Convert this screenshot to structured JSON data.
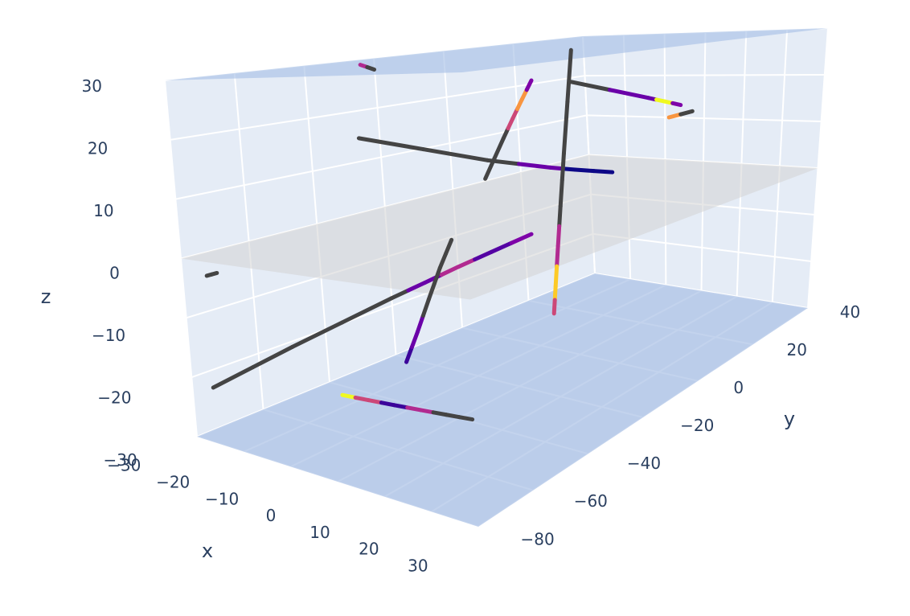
{
  "chart_data": {
    "type": "scatter3d",
    "xlabel": "x",
    "ylabel": "y",
    "zlabel": "z",
    "xlim": [
      -30,
      30
    ],
    "ylim": [
      -80,
      40
    ],
    "zlim": [
      -30,
      30
    ],
    "xticks": [
      {
        "value": -30,
        "label": "−30"
      },
      {
        "value": -20,
        "label": "−20"
      },
      {
        "value": -10,
        "label": "−10"
      },
      0,
      10,
      20,
      30
    ],
    "yticks": [
      {
        "value": -80,
        "label": "−80"
      },
      {
        "value": -60,
        "label": "−60"
      },
      {
        "value": -40,
        "label": "−40"
      },
      {
        "value": -20,
        "label": "−20"
      },
      0,
      20,
      40
    ],
    "zticks": [
      {
        "value": -30,
        "label": "−30"
      },
      {
        "value": -20,
        "label": "−20"
      },
      {
        "value": -10,
        "label": "−10"
      },
      0,
      10,
      20,
      30
    ],
    "grid": true,
    "planes": [
      {
        "z": -30,
        "color": "#a9c1e6",
        "opacity": 0.7
      },
      {
        "z": 0,
        "color": "#d4d4d4",
        "opacity": 0.55
      },
      {
        "z": 30,
        "color": "#a9c1e6",
        "opacity": 0.65
      }
    ],
    "series": [
      {
        "x": [
          -30,
          -30,
          -30,
          -30,
          -30,
          -30,
          -30
        ],
        "y": [
          -74,
          -50,
          -20,
          -10,
          0,
          10,
          22
        ],
        "z": [
          -23,
          -21,
          -18.5,
          -17.7,
          -16.8,
          -16,
          -15
        ],
        "colors": [
          "#444444",
          "#444444",
          "#444444",
          "#6a00a8",
          "#b12a90",
          "#5402a3",
          "#7e03a8"
        ]
      },
      {
        "x": [
          0,
          0,
          0,
          0,
          0
        ],
        "y": [
          -56,
          -52,
          -48,
          -44,
          -40
        ],
        "z": [
          -17,
          -13,
          -8.5,
          -4,
          0
        ],
        "colors": [
          "#3b049a",
          "#6a00a8",
          "#444444",
          "#444444",
          "#444444"
        ]
      },
      {
        "x": [
          -24,
          -18,
          -12,
          -6,
          0,
          6
        ],
        "y": [
          -44,
          -44,
          -44,
          -44,
          -44,
          -44
        ],
        "z": [
          -30,
          -29.6,
          -29.2,
          -28.8,
          -28.4,
          -28
        ],
        "colors": [
          "#f0f921",
          "#cc4778",
          "#3b049a",
          "#b12a90",
          "#444444",
          "#444444"
        ]
      },
      {
        "x": [
          -30,
          -27,
          -25.5,
          -24.9,
          -24
        ],
        "y": [
          -26,
          7,
          23.5,
          30.1,
          40
        ],
        "z": [
          14.6,
          5.3,
          0.65,
          -1.2,
          -4
        ],
        "colors": [
          "#444444",
          "#444444",
          "#6a00a8",
          "#0d0887",
          "#0d0887"
        ]
      },
      {
        "x": [
          -18,
          -18,
          -18,
          -18,
          -18,
          -18
        ],
        "y": [
          22,
          18.8,
          17.2,
          16,
          14.8,
          14
        ],
        "z": [
          28,
          5.2,
          -6.2,
          -14.75,
          -23.3,
          -29
        ],
        "colors": [
          "#444444",
          "#444444",
          "#444444",
          "#b12a90",
          "#fdca26",
          "#cc4778"
        ]
      },
      {
        "x": [
          -18,
          -18,
          -18,
          -18,
          -18
        ],
        "y": [
          -5,
          1,
          4,
          7,
          10
        ],
        "z": [
          4,
          11.4,
          15.1,
          18.8,
          22.5
        ],
        "colors": [
          "#444444",
          "#444444",
          "#cc4778",
          "#f89540",
          "#7e03a8"
        ]
      },
      {
        "x": [
          -30,
          -13.2,
          -9.6,
          -6
        ],
        "y": [
          36,
          38.8,
          39.4,
          40
        ],
        "z": [
          19,
          14.8,
          13.9,
          13
        ],
        "colors": [
          "#444444",
          "#6a00a8",
          "#f0f921",
          "#7e03a8"
        ]
      },
      {
        "x": [
          -9,
          -3
        ],
        "y": [
          40,
          40
        ],
        "z": [
          10,
          11.6
        ],
        "colors": [
          "#f89540",
          "#444444"
        ]
      },
      {
        "x": [
          -30,
          -30
        ],
        "y": [
          -73,
          -70
        ],
        "z": [
          -4,
          -4
        ],
        "colors": [
          "#444444",
          "#444444"
        ]
      },
      {
        "x": [
          -30,
          -27
        ],
        "y": [
          -24,
          -24
        ],
        "z": [
          29,
          28
        ],
        "colors": [
          "#b12a90",
          "#444444"
        ]
      }
    ]
  }
}
